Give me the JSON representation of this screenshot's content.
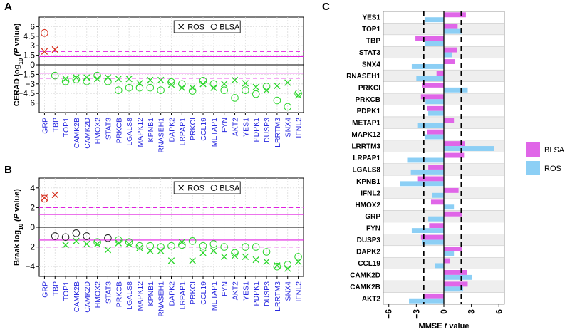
{
  "chart_data": [
    {
      "panel": "A",
      "type": "scatter",
      "ylabel_main": "CERAD log",
      "ylabel_sub": "10",
      "ylabel_tail": "(P value)",
      "ylabel_italic": "P",
      "yticks": [
        6,
        4.5,
        3,
        1.5,
        0,
        -1.5,
        -3,
        -4.5,
        -6
      ],
      "ylim": [
        -7.5,
        7.5
      ],
      "thresholds": {
        "solid": [
          1.3,
          -1.3
        ],
        "dashed": [
          2.1,
          -2.1
        ]
      },
      "legend": [
        "ROS",
        "BLSA"
      ],
      "genes": [
        "GRP",
        "TBP",
        "TOP1",
        "CAMK2B",
        "CAMK2D",
        "HMOX2",
        "STAT3",
        "PRKCB",
        "LGALS8",
        "MAPK12",
        "KPNB1",
        "RNASEH1",
        "DAPK2",
        "LRPAP1",
        "PRKCI",
        "CCL19",
        "METAP1",
        "FYN",
        "AKT2",
        "YES1",
        "PDPK1",
        "DUSP3",
        "LRRTM3",
        "SNX4",
        "IFNL2"
      ],
      "series": [
        {
          "name": "ROS",
          "marker": "x",
          "values": [
            2.1,
            2.4,
            -2.2,
            -2.0,
            -2.0,
            -2.2,
            -2.0,
            -2.2,
            -2.2,
            -2.9,
            -2.4,
            -2.4,
            -3.1,
            -3.6,
            -3.6,
            -3.0,
            -3.6,
            -3.0,
            -2.4,
            -2.9,
            -3.5,
            -4.0,
            -3.3,
            -2.8,
            -4.8
          ]
        },
        {
          "name": "BLSA",
          "marker": "o",
          "values": [
            5.0,
            -1.7,
            -2.6,
            -2.3,
            -2.6,
            -1.7,
            -2.6,
            -4.0,
            -3.6,
            -3.6,
            -3.6,
            -4.0,
            -2.7,
            -3.0,
            -4.1,
            -2.5,
            -3.0,
            -4.0,
            -5.2,
            -4.0,
            -4.6,
            -3.4,
            -5.6,
            -6.6,
            -4.5
          ]
        }
      ],
      "highlight_colors": {
        "significant_positive": "#d7301f",
        "significant_negative": "#2bd62b",
        "not_significant": "#b0b0b0"
      }
    },
    {
      "panel": "B",
      "type": "scatter",
      "ylabel_main": "Braak log",
      "ylabel_sub": "10",
      "ylabel_tail": "(P value)",
      "ylabel_italic": "P",
      "yticks": [
        4,
        2,
        0,
        -2,
        -4
      ],
      "ylim": [
        -5,
        5
      ],
      "thresholds": {
        "solid": [
          1.3,
          -1.3
        ],
        "dashed": [
          2.0,
          -2.0
        ]
      },
      "legend": [
        "ROS",
        "BLSA"
      ],
      "genes": [
        "GRP",
        "TBP",
        "TOP1",
        "CAMK2B",
        "CAMK2D",
        "HMOX2",
        "STAT3",
        "PRKCB",
        "LGALS8",
        "MAPK12",
        "KPNB1",
        "RNASEH1",
        "DAPK2",
        "LRPAP1",
        "PRKCI",
        "CCL19",
        "METAP1",
        "FYN",
        "AKT2",
        "YES1",
        "PDPK1",
        "DUSP3",
        "LRRTM3",
        "SNX4",
        "IFNL2"
      ],
      "series": [
        {
          "name": "ROS",
          "marker": "x",
          "values": [
            3.0,
            3.3,
            -1.8,
            -1.4,
            -1.7,
            -1.7,
            -2.3,
            -1.6,
            -1.7,
            -2.1,
            -2.4,
            -2.4,
            -3.4,
            -1.5,
            -3.4,
            -2.6,
            -2.4,
            -3.0,
            -2.9,
            -3.0,
            -3.3,
            -3.5,
            -3.9,
            -4.2,
            -3.5
          ]
        },
        {
          "name": "BLSA",
          "marker": "o",
          "values": [
            2.9,
            -0.9,
            -1.0,
            -0.6,
            -0.9,
            -1.5,
            -1.1,
            -1.3,
            -1.5,
            -1.9,
            -1.9,
            -2.0,
            -1.9,
            -1.8,
            -1.4,
            -1.9,
            -1.7,
            -2.0,
            -2.6,
            -2.0,
            -2.0,
            -2.5,
            -4.0,
            -3.8,
            -3.0
          ]
        }
      ]
    },
    {
      "panel": "C",
      "type": "bar",
      "orientation": "horizontal",
      "xlabel": "MMSE t value",
      "xlabel_main": "MMSE ",
      "xlabel_italic": "t",
      "xlabel_tail": " value",
      "xticks": [
        -6,
        -3,
        0,
        3,
        6
      ],
      "xlim": [
        -6.6,
        6.6
      ],
      "dashed_lines": [
        -2.2,
        1.9
      ],
      "categories": [
        "YES1",
        "TOP1",
        "TBP",
        "STAT3",
        "SNX4",
        "RNASEH1",
        "PRKCI",
        "PRKCB",
        "PDPK1",
        "METAP1",
        "MAPK12",
        "LRRTM3",
        "LRPAP1",
        "LGALS8",
        "KPNB1",
        "IFNL2",
        "HMOX2",
        "GRP",
        "FYN",
        "DUSP3",
        "DAPK2",
        "CCL19",
        "CAMK2D",
        "CAMK2B",
        "AKT2"
      ],
      "series": [
        {
          "name": "BLSA",
          "color": "#e066e8",
          "values": [
            2.4,
            1.5,
            -3.1,
            1.4,
            1.2,
            -0.8,
            -2.4,
            -2.5,
            -1.8,
            1.1,
            -1.8,
            2.3,
            2.2,
            -1.7,
            -2.9,
            1.6,
            -1.4,
            2.0,
            -1.6,
            -2.5,
            2.0,
            0.7,
            2.5,
            2.6,
            -2.2
          ]
        },
        {
          "name": "ROS",
          "color": "#8ccff5",
          "values": [
            -2.1,
            2.0,
            -2.1,
            0.9,
            -3.5,
            -3.0,
            2.6,
            -2.0,
            -1.7,
            -2.9,
            -2.1,
            5.5,
            -4.0,
            -3.6,
            -4.8,
            -1.3,
            1.1,
            -1.7,
            -3.5,
            -2.4,
            1.1,
            -1.0,
            3.1,
            2.1,
            -3.8
          ]
        }
      ],
      "legend": [
        "BLSA",
        "ROS"
      ]
    }
  ],
  "panel_letters": {
    "a": "A",
    "b": "B",
    "c": "C"
  }
}
